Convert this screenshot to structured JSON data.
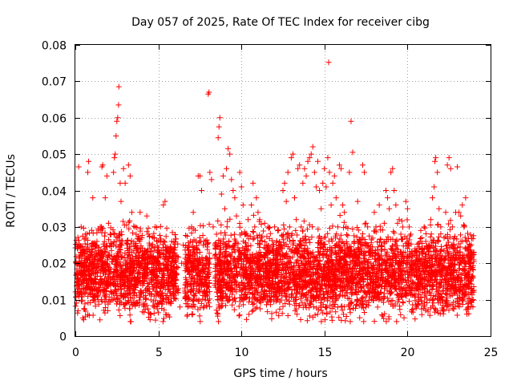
{
  "chart_data": {
    "type": "scatter",
    "title": "Day 057 of 2025, Rate Of TEC Index for receiver cibg",
    "xlabel": "GPS time / hours",
    "ylabel": "ROTI / TECUs",
    "xlim": [
      0,
      25
    ],
    "ylim": [
      0,
      0.08
    ],
    "x_ticks": [
      0,
      5,
      10,
      15,
      20,
      25
    ],
    "y_ticks": [
      0,
      0.01,
      0.02,
      0.03,
      0.04,
      0.05,
      0.06,
      0.07,
      0.08
    ],
    "x_tick_labels": [
      "0",
      "5",
      "10",
      "15",
      "20",
      "25"
    ],
    "y_tick_labels": [
      "0",
      "0.01",
      "0.02",
      "0.03",
      "0.04",
      "0.05",
      "0.06",
      "0.07",
      "0.08"
    ],
    "grid": true,
    "marker": "plus",
    "color": "#ff0000",
    "series": [
      {
        "points": [
          [
            0.05,
            0.02
          ],
          [
            0.1,
            0.025
          ],
          [
            0.15,
            0.015
          ],
          [
            0.2,
            0.0465
          ],
          [
            0.25,
            0.018
          ],
          [
            0.3,
            0.012
          ],
          [
            0.35,
            0.03
          ],
          [
            0.4,
            0.022
          ],
          [
            0.45,
            0.005
          ],
          [
            0.5,
            0.0045
          ],
          [
            0.55,
            0.016
          ],
          [
            0.6,
            0.028
          ],
          [
            0.65,
            0.019
          ],
          [
            0.7,
            0.024
          ],
          [
            0.75,
            0.045
          ],
          [
            0.8,
            0.048
          ],
          [
            0.85,
            0.021
          ],
          [
            0.9,
            0.013
          ],
          [
            0.95,
            0.017
          ],
          [
            1.0,
            0.02
          ],
          [
            1.05,
            0.038
          ],
          [
            1.1,
            0.015
          ],
          [
            1.2,
            0.011
          ],
          [
            1.3,
            0.026
          ],
          [
            1.4,
            0.019
          ],
          [
            1.5,
            0.03
          ],
          [
            1.6,
            0.0465
          ],
          [
            1.65,
            0.047
          ],
          [
            1.7,
            0.022
          ],
          [
            1.8,
            0.038
          ],
          [
            1.9,
            0.044
          ],
          [
            2.0,
            0.031
          ],
          [
            2.1,
            0.028
          ],
          [
            2.2,
            0.012
          ],
          [
            2.3,
            0.045
          ],
          [
            2.35,
            0.049
          ],
          [
            2.4,
            0.05
          ],
          [
            2.45,
            0.055
          ],
          [
            2.5,
            0.059
          ],
          [
            2.55,
            0.06
          ],
          [
            2.6,
            0.0635
          ],
          [
            2.62,
            0.0685
          ],
          [
            2.7,
            0.042
          ],
          [
            2.75,
            0.037
          ],
          [
            2.8,
            0.025
          ],
          [
            2.9,
            0.046
          ],
          [
            3.0,
            0.042
          ],
          [
            3.1,
            0.02
          ],
          [
            3.2,
            0.047
          ],
          [
            3.3,
            0.044
          ],
          [
            3.4,
            0.034
          ],
          [
            3.5,
            0.018
          ],
          [
            3.6,
            0.03
          ],
          [
            3.7,
            0.024
          ],
          [
            3.8,
            0.016
          ],
          [
            3.9,
            0.034
          ],
          [
            4.0,
            0.027
          ],
          [
            4.1,
            0.012
          ],
          [
            4.2,
            0.021
          ],
          [
            4.3,
            0.033
          ],
          [
            4.4,
            0.028
          ],
          [
            4.5,
            0.0045
          ],
          [
            4.6,
            0.015
          ],
          [
            4.7,
            0.022
          ],
          [
            4.8,
            0.03
          ],
          [
            4.9,
            0.026
          ],
          [
            5.0,
            0.02
          ],
          [
            5.1,
            0.018
          ],
          [
            5.3,
            0.036
          ],
          [
            5.4,
            0.037
          ],
          [
            5.5,
            0.022
          ],
          [
            5.6,
            0.014
          ],
          [
            5.7,
            0.009
          ],
          [
            5.8,
            0.026
          ],
          [
            5.9,
            0.019
          ],
          [
            6.0,
            0.016
          ],
          [
            6.2,
            0.013
          ],
          [
            6.3,
            0.008
          ],
          [
            6.4,
            0.02
          ],
          [
            6.5,
            0.025
          ],
          [
            6.9,
            0.014
          ],
          [
            7.0,
            0.03
          ],
          [
            7.1,
            0.034
          ],
          [
            7.2,
            0.022
          ],
          [
            7.4,
            0.044
          ],
          [
            7.5,
            0.044
          ],
          [
            7.6,
            0.04
          ],
          [
            7.7,
            0.025
          ],
          [
            7.8,
            0.02
          ],
          [
            7.9,
            0.012
          ],
          [
            8.0,
            0.0665
          ],
          [
            8.05,
            0.067
          ],
          [
            8.1,
            0.045
          ],
          [
            8.2,
            0.043
          ],
          [
            8.3,
            0.03
          ],
          [
            8.4,
            0.022
          ],
          [
            8.5,
            0.028
          ],
          [
            8.6,
            0.0545
          ],
          [
            8.65,
            0.0575
          ],
          [
            8.7,
            0.06
          ],
          [
            8.8,
            0.039
          ],
          [
            8.9,
            0.044
          ],
          [
            9.0,
            0.035
          ],
          [
            9.1,
            0.046
          ],
          [
            9.2,
            0.0515
          ],
          [
            9.3,
            0.05
          ],
          [
            9.4,
            0.043
          ],
          [
            9.5,
            0.04
          ],
          [
            9.6,
            0.038
          ],
          [
            9.7,
            0.033
          ],
          [
            9.8,
            0.021
          ],
          [
            9.9,
            0.045
          ],
          [
            10.0,
            0.041
          ],
          [
            10.1,
            0.036
          ],
          [
            10.2,
            0.028
          ],
          [
            10.3,
            0.024
          ],
          [
            10.4,
            0.032
          ],
          [
            10.5,
            0.02
          ],
          [
            10.6,
            0.036
          ],
          [
            10.7,
            0.042
          ],
          [
            10.8,
            0.03
          ],
          [
            10.9,
            0.038
          ],
          [
            11.0,
            0.034
          ],
          [
            11.1,
            0.032
          ],
          [
            11.2,
            0.027
          ],
          [
            11.3,
            0.02
          ],
          [
            11.4,
            0.031
          ],
          [
            11.5,
            0.025
          ],
          [
            11.6,
            0.03
          ],
          [
            11.7,
            0.023
          ],
          [
            11.8,
            0.018
          ],
          [
            11.9,
            0.015
          ],
          [
            12.0,
            0.03
          ],
          [
            12.1,
            0.022
          ],
          [
            12.3,
            0.025
          ],
          [
            12.4,
            0.024
          ],
          [
            12.5,
            0.04
          ],
          [
            12.6,
            0.042
          ],
          [
            12.7,
            0.037
          ],
          [
            12.8,
            0.045
          ],
          [
            12.9,
            0.03
          ],
          [
            13.0,
            0.049
          ],
          [
            13.1,
            0.05
          ],
          [
            13.2,
            0.038
          ],
          [
            13.3,
            0.032
          ],
          [
            13.4,
            0.046
          ],
          [
            13.5,
            0.047
          ],
          [
            13.6,
            0.03
          ],
          [
            13.7,
            0.042
          ],
          [
            13.8,
            0.046
          ],
          [
            13.9,
            0.044
          ],
          [
            14.0,
            0.048
          ],
          [
            14.1,
            0.049
          ],
          [
            14.2,
            0.05
          ],
          [
            14.3,
            0.052
          ],
          [
            14.4,
            0.045
          ],
          [
            14.5,
            0.041
          ],
          [
            14.6,
            0.048
          ],
          [
            14.7,
            0.04
          ],
          [
            14.8,
            0.035
          ],
          [
            14.9,
            0.042
          ],
          [
            15.0,
            0.046
          ],
          [
            15.1,
            0.041
          ],
          [
            15.2,
            0.049
          ],
          [
            15.25,
            0.0752
          ],
          [
            15.3,
            0.045
          ],
          [
            15.4,
            0.036
          ],
          [
            15.5,
            0.042
          ],
          [
            15.6,
            0.044
          ],
          [
            15.7,
            0.038
          ],
          [
            15.8,
            0.03
          ],
          [
            15.9,
            0.047
          ],
          [
            16.0,
            0.046
          ],
          [
            16.1,
            0.036
          ],
          [
            16.2,
            0.034
          ],
          [
            16.3,
            0.03
          ],
          [
            16.4,
            0.024
          ],
          [
            16.5,
            0.045
          ],
          [
            16.6,
            0.059
          ],
          [
            16.7,
            0.0505
          ],
          [
            16.8,
            0.026
          ],
          [
            16.9,
            0.02
          ],
          [
            17.0,
            0.037
          ],
          [
            17.1,
            0.015
          ],
          [
            17.2,
            0.024
          ],
          [
            17.3,
            0.047
          ],
          [
            17.4,
            0.045
          ],
          [
            17.5,
            0.031
          ],
          [
            17.6,
            0.03
          ],
          [
            17.7,
            0.024
          ],
          [
            17.8,
            0.02
          ],
          [
            17.9,
            0.014
          ],
          [
            18.0,
            0.034
          ],
          [
            18.1,
            0.03
          ],
          [
            18.2,
            0.022
          ],
          [
            18.3,
            0.036
          ],
          [
            18.4,
            0.016
          ],
          [
            18.5,
            0.0055
          ],
          [
            18.6,
            0.031
          ],
          [
            18.7,
            0.04
          ],
          [
            18.8,
            0.038
          ],
          [
            18.9,
            0.035
          ],
          [
            19.0,
            0.045
          ],
          [
            19.1,
            0.046
          ],
          [
            19.2,
            0.04
          ],
          [
            19.3,
            0.036
          ],
          [
            19.4,
            0.031
          ],
          [
            19.5,
            0.032
          ],
          [
            19.6,
            0.028
          ],
          [
            19.7,
            0.022
          ],
          [
            19.8,
            0.018
          ],
          [
            19.9,
            0.037
          ],
          [
            20.0,
            0.035
          ],
          [
            20.1,
            0.03
          ],
          [
            20.2,
            0.028
          ],
          [
            20.3,
            0.022
          ],
          [
            20.4,
            0.013
          ],
          [
            20.5,
            0.0085
          ],
          [
            20.6,
            0.02
          ],
          [
            20.7,
            0.018
          ],
          [
            20.8,
            0.029
          ],
          [
            20.9,
            0.024
          ],
          [
            21.0,
            0.03
          ],
          [
            21.1,
            0.026
          ],
          [
            21.2,
            0.02
          ],
          [
            21.3,
            0.025
          ],
          [
            21.4,
            0.032
          ],
          [
            21.5,
            0.038
          ],
          [
            21.6,
            0.041
          ],
          [
            21.65,
            0.048
          ],
          [
            21.7,
            0.049
          ],
          [
            21.8,
            0.045
          ],
          [
            21.9,
            0.035
          ],
          [
            22.0,
            0.03
          ],
          [
            22.1,
            0.022
          ],
          [
            22.2,
            0.027
          ],
          [
            22.3,
            0.034
          ],
          [
            22.4,
            0.047
          ],
          [
            22.5,
            0.049
          ],
          [
            22.6,
            0.046
          ],
          [
            22.7,
            0.03
          ],
          [
            22.8,
            0.025
          ],
          [
            22.9,
            0.034
          ],
          [
            23.0,
            0.0465
          ],
          [
            23.1,
            0.034
          ],
          [
            23.2,
            0.033
          ],
          [
            23.3,
            0.036
          ],
          [
            23.4,
            0.03
          ],
          [
            23.5,
            0.038
          ],
          [
            23.6,
            0.024
          ],
          [
            23.7,
            0.02
          ],
          [
            23.8,
            0.019
          ],
          [
            23.9,
            0.022
          ],
          [
            23.95,
            0.016
          ]
        ]
      }
    ],
    "band": {
      "segments": [
        [
          0.0,
          6.2
        ],
        [
          6.6,
          8.1
        ],
        [
          8.4,
          24.0
        ]
      ],
      "center": 0.0175,
      "spread": 0.0065,
      "density": 1300
    }
  }
}
